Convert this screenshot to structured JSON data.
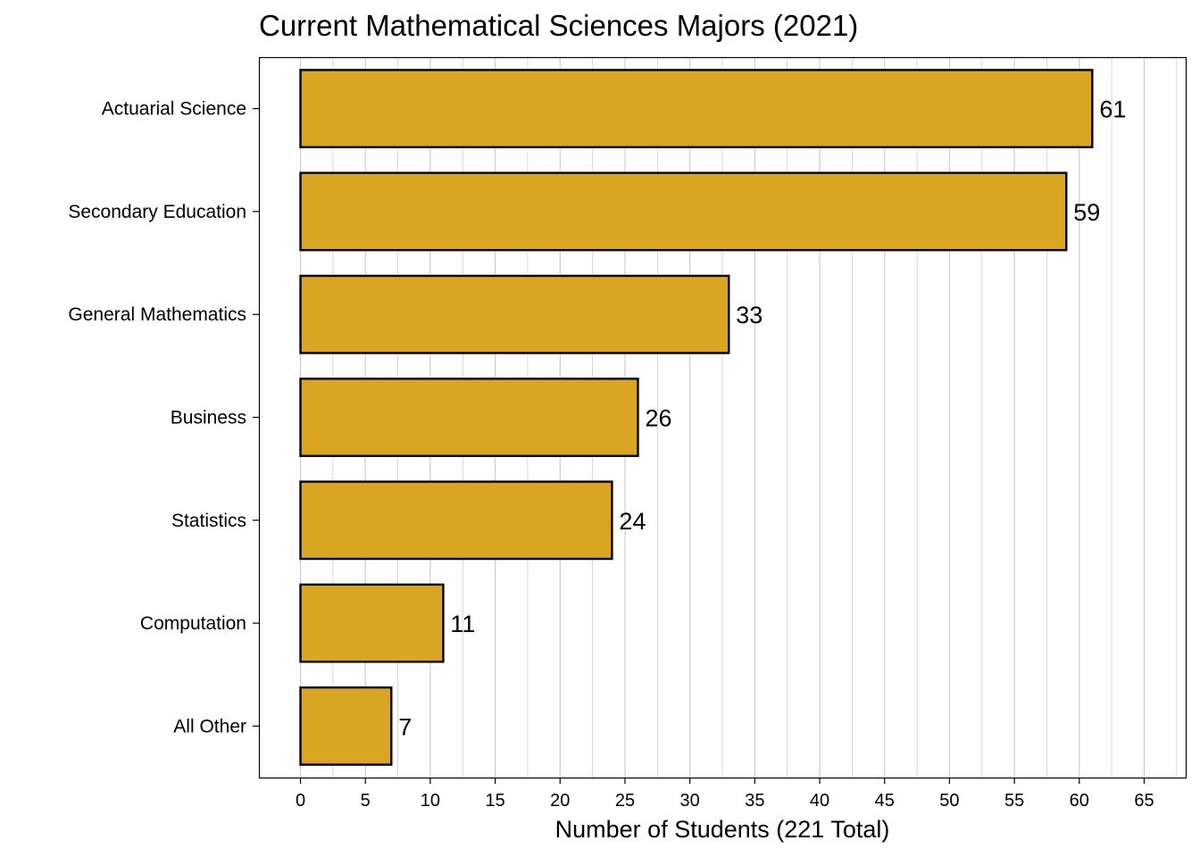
{
  "chart_data": {
    "type": "bar",
    "orientation": "horizontal",
    "title": "Current Mathematical Sciences Majors (2021)",
    "xlabel": "Number of Students (221 Total)",
    "ylabel": "",
    "categories": [
      "Actuarial Science",
      "Secondary Education",
      "General Mathematics",
      "Business",
      "Statistics",
      "Computation",
      "All Other"
    ],
    "values": [
      61,
      59,
      33,
      26,
      24,
      11,
      7
    ],
    "xlim": [
      -3.2,
      68.2
    ],
    "xticks": [
      0,
      5,
      10,
      15,
      20,
      25,
      30,
      35,
      40,
      45,
      50,
      55,
      60,
      65
    ],
    "tick_labels": [
      "0",
      "5",
      "10",
      "15",
      "20",
      "25",
      "30",
      "35",
      "40",
      "45",
      "50",
      "55",
      "60",
      "65"
    ],
    "minor_step": 2.5,
    "grid": "vertical",
    "data_labels": true,
    "bar_color": "#DAA520",
    "bar_edge_color": "#000000",
    "grid_color": "#c8c8c8"
  }
}
